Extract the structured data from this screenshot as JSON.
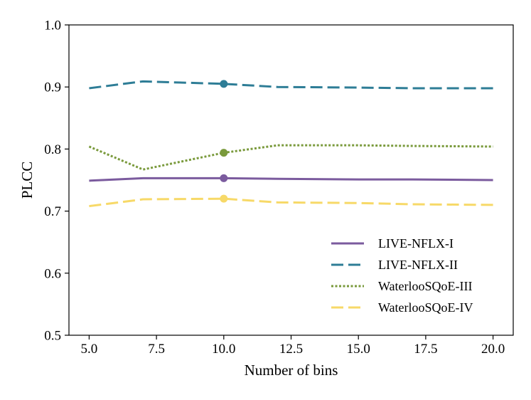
{
  "chart_data": {
    "type": "line",
    "title": "",
    "xlabel": "Number of bins",
    "ylabel": "PLCC",
    "xlim": [
      4.25,
      20.75
    ],
    "ylim": [
      0.5,
      1.0
    ],
    "x_ticks": [
      5.0,
      7.5,
      10.0,
      12.5,
      15.0,
      17.5,
      20.0
    ],
    "x_tick_labels": [
      "5.0",
      "7.5",
      "10.0",
      "12.5",
      "15.0",
      "17.5",
      "20.0"
    ],
    "y_ticks": [
      0.5,
      0.6,
      0.7,
      0.8,
      0.9,
      1.0
    ],
    "y_tick_labels": [
      "0.5",
      "0.6",
      "0.7",
      "0.8",
      "0.9",
      "1.0"
    ],
    "grid": false,
    "legend_position": "lower-right",
    "x": [
      5,
      7,
      10,
      12,
      15,
      17,
      20
    ],
    "series": [
      {
        "name": "LIVE-NFLX-I",
        "color": "#7b5b9e",
        "line_style": "solid",
        "values": [
          0.749,
          0.753,
          0.753,
          0.752,
          0.751,
          0.751,
          0.75
        ],
        "marker": {
          "x": 10,
          "y": 0.753
        }
      },
      {
        "name": "LIVE-NFLX-II",
        "color": "#2e7d96",
        "line_style": "dashed",
        "values": [
          0.898,
          0.909,
          0.905,
          0.9,
          0.899,
          0.898,
          0.898
        ],
        "marker": {
          "x": 10,
          "y": 0.905
        }
      },
      {
        "name": "WaterlooSQoE-III",
        "color": "#7a9a3c",
        "line_style": "dotted",
        "values": [
          0.804,
          0.767,
          0.794,
          0.806,
          0.806,
          0.805,
          0.804
        ],
        "marker": {
          "x": 10,
          "y": 0.794
        }
      },
      {
        "name": "WaterlooSQoE-IV",
        "color": "#f7d968",
        "line_style": "dashed",
        "values": [
          0.708,
          0.719,
          0.72,
          0.714,
          0.713,
          0.711,
          0.71
        ],
        "marker": {
          "x": 10,
          "y": 0.72
        }
      }
    ]
  }
}
